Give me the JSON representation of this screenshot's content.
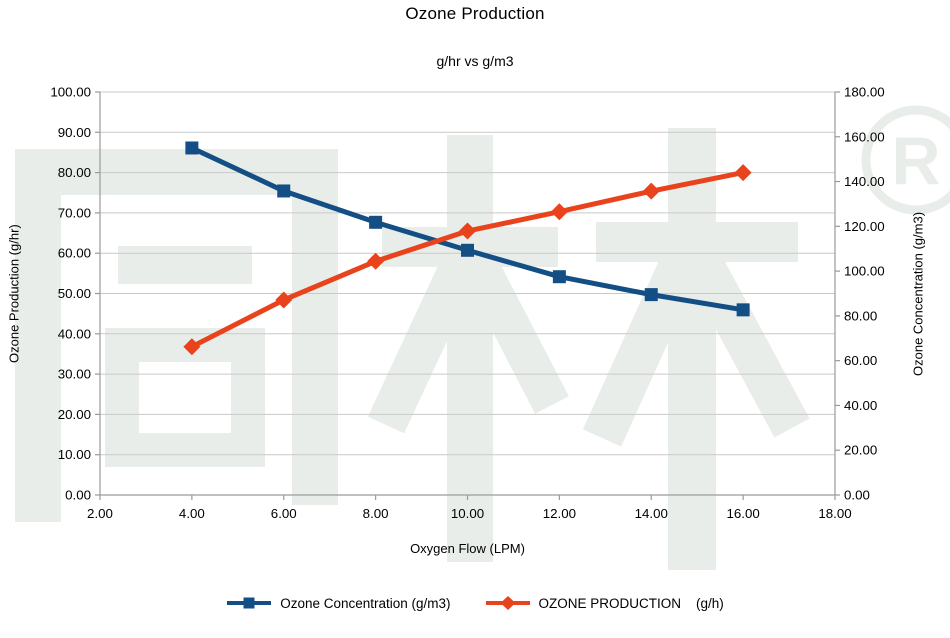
{
  "watermark": {
    "text": "同林",
    "registered_symbol": "®",
    "color": "#e9ede9"
  },
  "chart_data": {
    "type": "line",
    "title": "Ozone Production",
    "subtitle": "g/hr vs g/m3",
    "xlabel": "Oxygen Flow (LPM)",
    "ylabel_left": "Ozone Production (g/hr)",
    "ylabel_right": "Ozone Concentration (g/m3)",
    "grid": "horizontal-only",
    "legend_position": "bottom",
    "x": [
      4,
      6,
      8,
      10,
      12,
      14,
      16
    ],
    "xlim": [
      2,
      18
    ],
    "xtick_labels": [
      "2.00",
      "4.00",
      "6.00",
      "8.00",
      "10.00",
      "12.00",
      "14.00",
      "16.00",
      "18.00"
    ],
    "ylim_left": [
      0,
      100
    ],
    "ytick_labels_left": [
      "0.00",
      "10.00",
      "20.00",
      "30.00",
      "40.00",
      "50.00",
      "60.00",
      "70.00",
      "80.00",
      "90.00",
      "100.00"
    ],
    "ylim_right": [
      0,
      180
    ],
    "ytick_labels_right": [
      "0.00",
      "20.00",
      "40.00",
      "60.00",
      "80.00",
      "100.00",
      "120.00",
      "140.00",
      "160.00",
      "180.00"
    ],
    "axis_color": "#9a9a9a",
    "gridline_color": "#c9c9c9",
    "series": [
      {
        "name": "Ozone Concentration (g/m3)",
        "axis": "right",
        "marker": "square",
        "color": "#134f84",
        "values": [
          155.0,
          135.8,
          121.8,
          109.3,
          97.5,
          89.5,
          82.7
        ]
      },
      {
        "name": "OZONE PRODUCTION    (g/h)",
        "axis": "left",
        "marker": "diamond",
        "color": "#e8431c",
        "values": [
          36.8,
          48.4,
          58.0,
          65.5,
          70.3,
          75.4,
          80.0
        ]
      }
    ]
  }
}
